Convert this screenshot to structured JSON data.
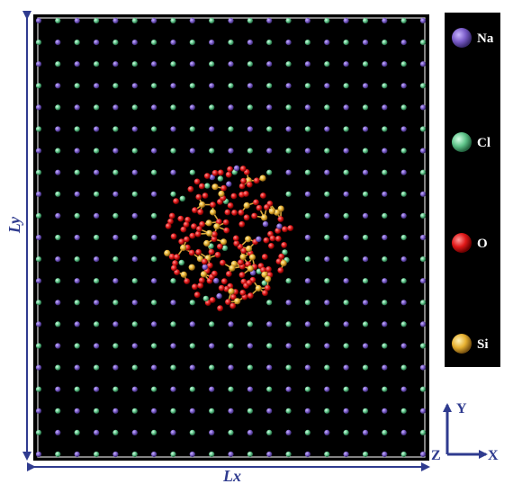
{
  "labels": {
    "lx": "Lx",
    "ly": "Ly"
  },
  "axes": {
    "x": "X",
    "y": "Y",
    "z": "Z"
  },
  "legend": [
    {
      "label": "Na",
      "color": "#7a5cc8"
    },
    {
      "label": "Cl",
      "color": "#5fc48a"
    },
    {
      "label": "O",
      "color": "#e01818"
    },
    {
      "label": "Si",
      "color": "#e6b030"
    }
  ],
  "colors": {
    "box_background": "#000000",
    "box_outline": "#d8d8d8",
    "dimension_arrows": "#2f3b8f",
    "axis_arrows": "#2f3b8f",
    "bond": "#d9a63a"
  },
  "lattice": {
    "rows": 21,
    "cols": 21
  }
}
